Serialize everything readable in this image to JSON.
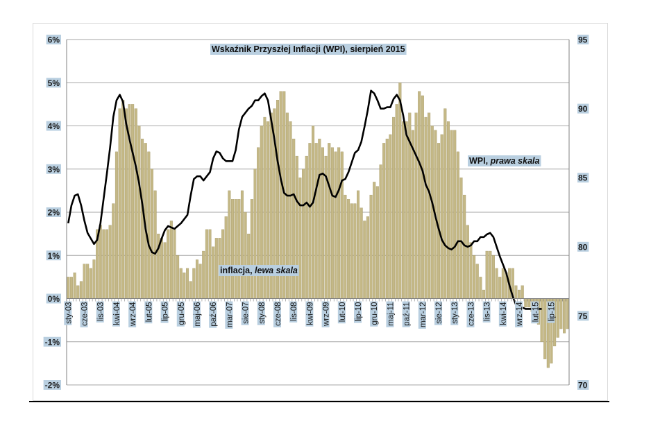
{
  "chart_data": {
    "type": "bar+line",
    "title": "Wskaźnik Przyszłej Inflacji (WPI), sierpień 2015",
    "left_axis": {
      "ticks": [
        "-2%",
        "-1%",
        "0%",
        "1%",
        "2%",
        "3%",
        "4%",
        "5%",
        "6%"
      ],
      "ylim": [
        -2,
        6
      ]
    },
    "right_axis": {
      "ticks": [
        "70",
        "75",
        "80",
        "85",
        "90",
        "95"
      ],
      "ylim": [
        70,
        95
      ]
    },
    "x_tick_labels": [
      "sty-03",
      "cze-03",
      "lis-03",
      "kwi-04",
      "wrz-04",
      "lut-05",
      "lip-05",
      "gru-05",
      "maj-06",
      "paź-06",
      "mar-07",
      "sie-07",
      "sty-08",
      "cze-08",
      "lis-08",
      "kwi-09",
      "wrz-09",
      "lut-10",
      "lip-10",
      "gru-10",
      "maj-11",
      "paź-11",
      "mar-12",
      "sie-12",
      "sty-13",
      "cze-13",
      "lis-13",
      "kwi-14",
      "wrz-14",
      "lut-15",
      "lip-15"
    ],
    "start_month": "sty-03",
    "grid": true,
    "series": [
      {
        "name": "inflacja, lewa skala",
        "kind": "bar",
        "axis": "left",
        "color": "#c4b886",
        "values": [
          0.5,
          0.5,
          0.6,
          0.3,
          0.4,
          0.8,
          0.8,
          0.7,
          0.9,
          1.6,
          1.7,
          1.6,
          1.6,
          1.7,
          2.2,
          3.4,
          4.4,
          4.6,
          4.4,
          4.5,
          4.5,
          4.4,
          4.0,
          3.7,
          3.6,
          3.4,
          3.0,
          2.5,
          1.5,
          1.4,
          1.3,
          1.6,
          1.8,
          1.6,
          1.0,
          0.7,
          0.6,
          0.7,
          0.4,
          0.7,
          0.9,
          0.8,
          1.1,
          1.6,
          1.6,
          1.2,
          1.4,
          1.4,
          1.6,
          1.9,
          2.5,
          2.3,
          2.3,
          2.3,
          2.5,
          2.0,
          1.5,
          2.3,
          3.0,
          3.5,
          4.0,
          4.2,
          4.1,
          4.3,
          4.4,
          4.6,
          4.8,
          4.8,
          4.3,
          4.1,
          3.7,
          3.3,
          2.8,
          3.0,
          3.3,
          3.6,
          4.0,
          3.6,
          3.7,
          3.5,
          3.3,
          3.6,
          3.5,
          3.4,
          3.5,
          3.4,
          2.4,
          2.3,
          2.2,
          2.2,
          2.5,
          2.1,
          1.8,
          1.9,
          2.4,
          2.7,
          2.6,
          3.1,
          3.6,
          3.7,
          3.8,
          4.2,
          4.5,
          5.0,
          4.1,
          4.1,
          4.3,
          3.9,
          4.3,
          4.8,
          4.7,
          4.2,
          4.3,
          4.0,
          3.9,
          3.6,
          3.8,
          4.4,
          4.1,
          3.9,
          3.9,
          3.4,
          2.8,
          2.4,
          1.7,
          1.3,
          1.0,
          0.8,
          0.5,
          0.2,
          1.1,
          1.1,
          1.0,
          0.7,
          0.5,
          0.7,
          0.6,
          0.7,
          0.7,
          0.3,
          0.2,
          0.3,
          -0.2,
          -0.2,
          -0.3,
          -0.2,
          -0.6,
          -1.0,
          -1.4,
          -1.6,
          -1.5,
          -1.1,
          -0.9,
          -0.7,
          -0.8,
          -0.7
        ]
      },
      {
        "name": "WPI, prawa skala",
        "kind": "line",
        "axis": "right",
        "color": "#000000",
        "values": [
          81.7,
          83.0,
          83.7,
          83.8,
          83.0,
          81.9,
          81.0,
          80.6,
          80.2,
          80.5,
          81.7,
          83.5,
          85.3,
          87.2,
          89.4,
          90.6,
          91.0,
          90.5,
          88.9,
          87.8,
          86.8,
          85.8,
          84.6,
          83.1,
          81.3,
          80.1,
          79.6,
          79.5,
          79.9,
          80.6,
          81.2,
          81.5,
          81.4,
          81.3,
          81.5,
          81.7,
          82.0,
          82.3,
          83.7,
          84.9,
          85.1,
          85.1,
          84.8,
          85.1,
          85.4,
          86.4,
          86.9,
          86.8,
          86.4,
          86.2,
          86.2,
          86.2,
          87.0,
          88.5,
          89.4,
          89.7,
          90.0,
          90.2,
          90.6,
          90.6,
          90.9,
          91.1,
          90.6,
          89.2,
          87.8,
          86.2,
          84.9,
          83.9,
          83.7,
          83.7,
          83.8,
          83.3,
          83.0,
          83.0,
          83.2,
          82.9,
          83.2,
          84.2,
          85.2,
          85.3,
          85.1,
          84.4,
          83.7,
          83.6,
          84.1,
          84.8,
          84.9,
          85.4,
          86.1,
          86.8,
          87.0,
          87.6,
          88.7,
          89.9,
          91.3,
          91.1,
          90.6,
          90.0,
          90.0,
          90.1,
          90.1,
          90.7,
          91.0,
          90.6,
          89.5,
          88.1,
          87.6,
          87.1,
          86.6,
          86.1,
          85.5,
          84.5,
          84.0,
          83.2,
          82.2,
          81.3,
          80.5,
          80.1,
          79.9,
          79.8,
          80.0,
          80.4,
          80.4,
          80.1,
          80.0,
          80.1,
          80.4,
          80.4,
          80.7,
          80.7,
          80.9,
          81.0,
          80.7,
          80.0,
          79.3,
          78.7,
          78.1,
          77.2,
          76.4,
          75.8,
          75.6,
          75.6,
          75.5,
          75.5,
          75.5,
          75.5,
          75.5,
          75.5
        ]
      }
    ],
    "annotations": {
      "bar_label_text": "inflacja, ",
      "bar_label_italic": "lewa skala",
      "line_label_text": "WPI, ",
      "line_label_italic": "prawa skala"
    }
  }
}
